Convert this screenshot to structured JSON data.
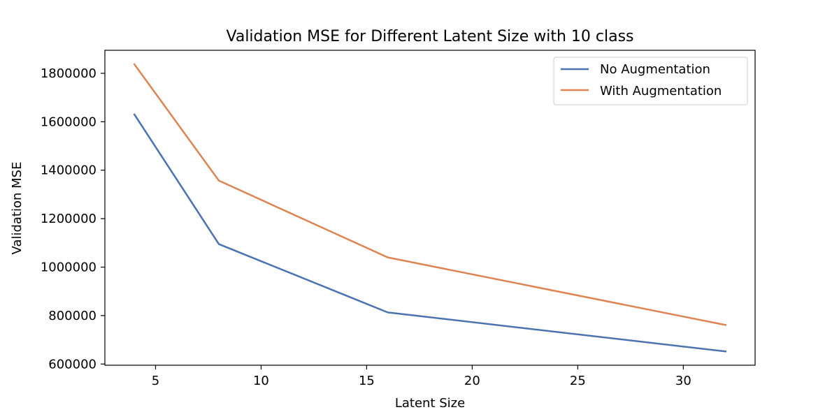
{
  "chart_data": {
    "type": "line",
    "title": "Validation MSE for Different Latent Size with 10 class",
    "xlabel": "Latent Size",
    "ylabel": "Validation MSE",
    "xlim": [
      2.6,
      33.4
    ],
    "ylim": [
      595000,
      1895000
    ],
    "xticks": [
      5,
      10,
      15,
      20,
      25,
      30
    ],
    "yticks": [
      600000,
      800000,
      1000000,
      1200000,
      1400000,
      1600000,
      1800000
    ],
    "x": [
      4,
      8,
      16,
      32
    ],
    "series": [
      {
        "name": "No Augmentation",
        "values": [
          1630000,
          1095000,
          813000,
          652000
        ],
        "color": "#4c72b0"
      },
      {
        "name": "With Augmentation",
        "values": [
          1837000,
          1357000,
          1040000,
          761000
        ],
        "color": "#dd8452"
      }
    ],
    "legend": "top-right",
    "grid": false
  }
}
